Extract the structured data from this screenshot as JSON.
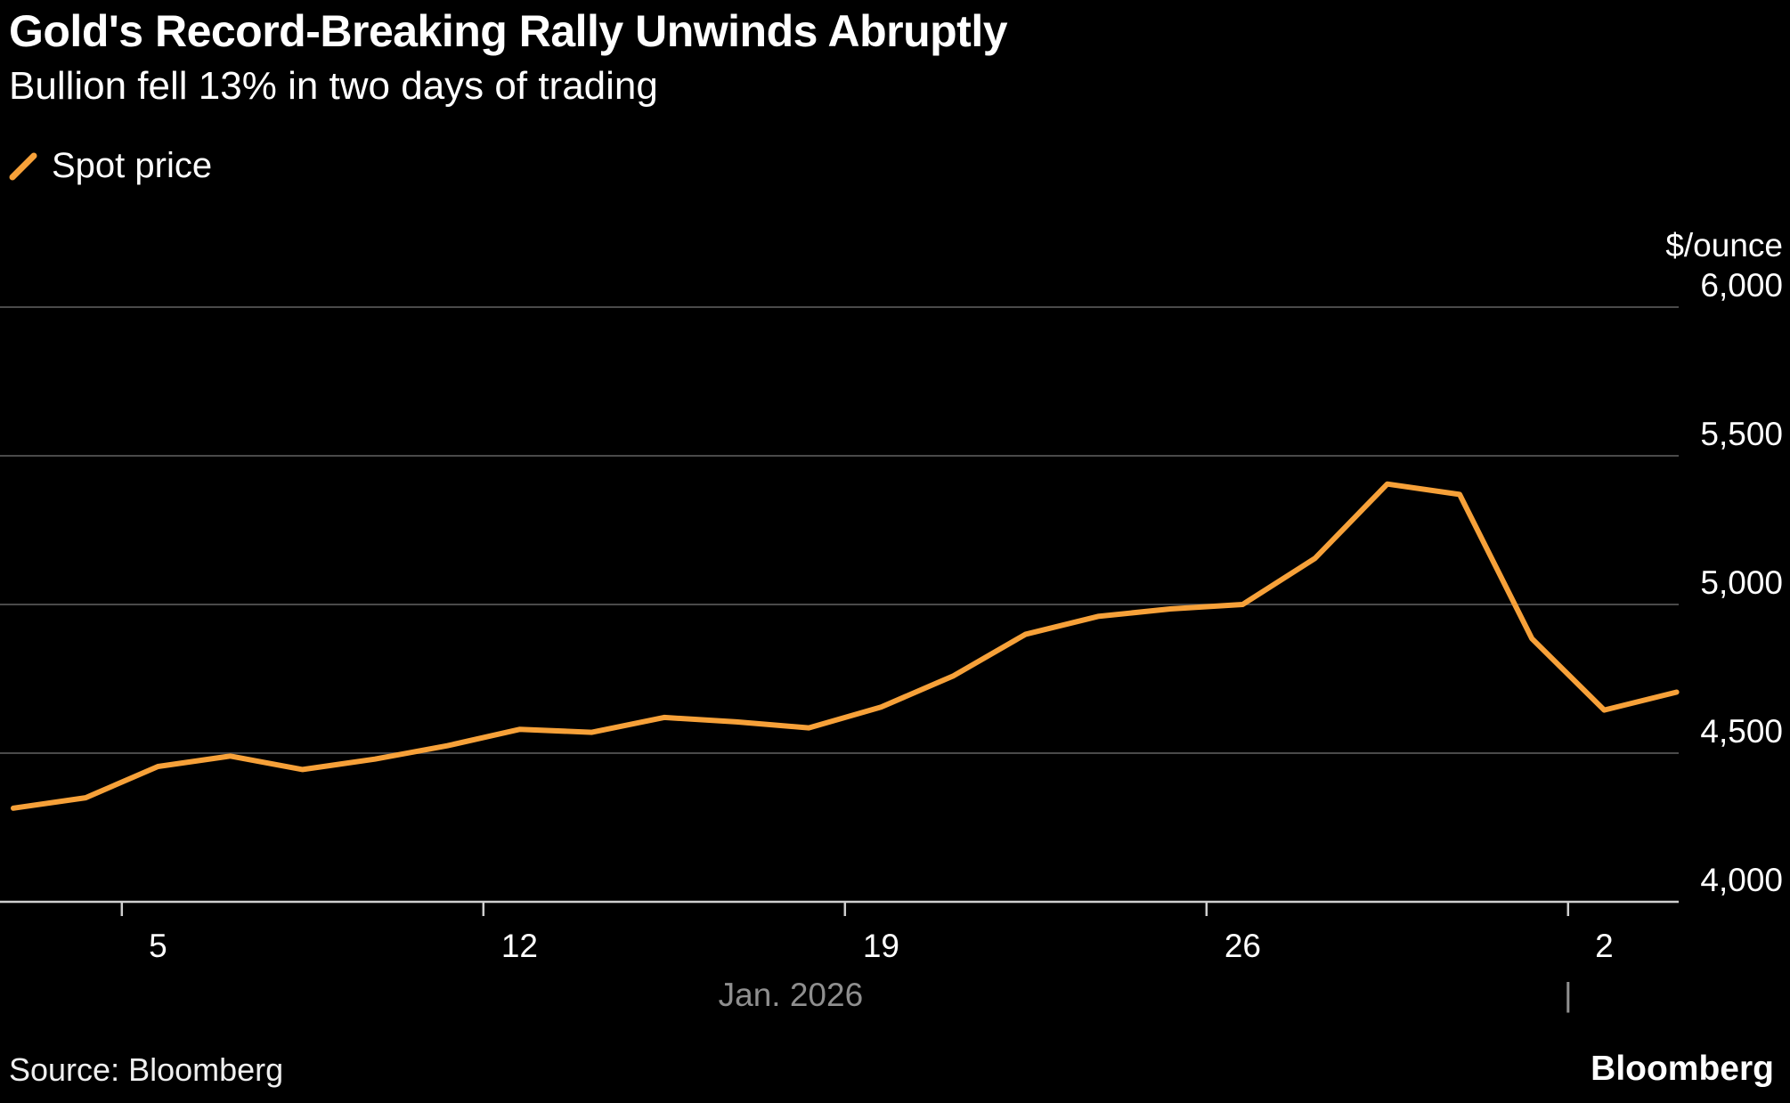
{
  "page": {
    "background": "#000000"
  },
  "header": {
    "title": "Gold's Record-Breaking Rally Unwinds Abruptly",
    "subtitle": "Bullion fell 13% in two days of trading"
  },
  "legend": {
    "items": [
      {
        "label": "Spot price",
        "color": "#F7A139"
      }
    ]
  },
  "axis": {
    "unit_label": "$/ounce",
    "x_month_label": "Jan. 2026",
    "month_divider_glyph": "|"
  },
  "footer": {
    "source": "Source: Bloomberg",
    "brand": "Bloomberg"
  },
  "chart_data": {
    "type": "line",
    "title": "Gold's Record-Breaking Rally Unwinds Abruptly",
    "subtitle": "Bullion fell 13% in two days of trading",
    "ylabel": "$/ounce",
    "xlabel": "Jan. 2026",
    "x": [
      "Jan 1",
      "Jan 2",
      "Jan 5",
      "Jan 6",
      "Jan 7",
      "Jan 8",
      "Jan 9",
      "Jan 12",
      "Jan 13",
      "Jan 14",
      "Jan 15",
      "Jan 16",
      "Jan 19",
      "Jan 20",
      "Jan 21",
      "Jan 22",
      "Jan 23",
      "Jan 26",
      "Jan 27",
      "Jan 28",
      "Jan 29",
      "Jan 30",
      "Feb 2",
      "Feb 3"
    ],
    "series": [
      {
        "name": "Spot price",
        "color": "#F7A139",
        "values": [
          4315,
          4350,
          4455,
          4490,
          4445,
          4480,
          4525,
          4580,
          4570,
          4620,
          4605,
          4585,
          4655,
          4760,
          4900,
          4960,
          4985,
          5000,
          5155,
          5405,
          5370,
          4885,
          4645,
          4705
        ]
      }
    ],
    "y_ticks": [
      4000,
      4500,
      5000,
      5500,
      6000
    ],
    "ylim": [
      4000,
      6175
    ],
    "x_ticks": [
      {
        "label": "5",
        "index": 2
      },
      {
        "label": "12",
        "index": 7
      },
      {
        "label": "19",
        "index": 12
      },
      {
        "label": "26",
        "index": 17
      },
      {
        "label": "2",
        "index": 22
      }
    ],
    "week_boundary_tick_indices": [
      1.5,
      6.5,
      11.5,
      16.5,
      21.5
    ],
    "month_divider_index": 21.5,
    "grid": "horizontal",
    "legend_position": "top-left",
    "background": "#000000",
    "line_width": 6
  }
}
